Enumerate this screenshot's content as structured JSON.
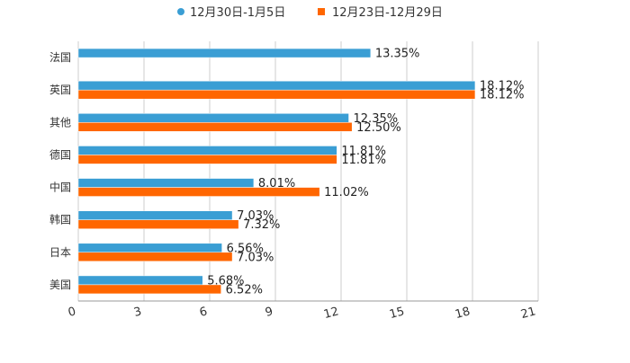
{
  "chart_data": {
    "type": "bar",
    "orientation": "horizontal",
    "title": "",
    "xlabel": "",
    "ylabel": "",
    "categories": [
      "法国",
      "英国",
      "其他",
      "德国",
      "中国",
      "韩国",
      "日本",
      "美国"
    ],
    "series": [
      {
        "name": "12月30日-1月5日",
        "color": "#3a9ed4",
        "values": [
          13.35,
          18.12,
          12.35,
          11.81,
          8.01,
          7.03,
          6.56,
          5.68
        ],
        "labels": [
          "13.35%",
          "18.12%",
          "12.35%",
          "11.81%",
          "8.01%",
          "7.03%",
          "6.56%",
          "5.68%"
        ]
      },
      {
        "name": "12月23日-12月29日",
        "color": "#ff6600",
        "values": [
          null,
          18.12,
          12.5,
          11.81,
          11.02,
          7.32,
          7.03,
          6.52
        ],
        "labels": [
          "",
          "18.12%",
          "12.50%",
          "11.81%",
          "11.02%",
          "7.32%",
          "7.03%",
          "6.52%"
        ]
      }
    ],
    "xlim": [
      0,
      21
    ],
    "x_ticks": [
      0,
      3,
      6,
      9,
      12,
      15,
      18,
      21
    ],
    "x_tick_labels": [
      "0",
      "3",
      "6",
      "9",
      "12",
      "15",
      "18",
      "21"
    ],
    "grid": true,
    "legend_position": "top-center"
  }
}
